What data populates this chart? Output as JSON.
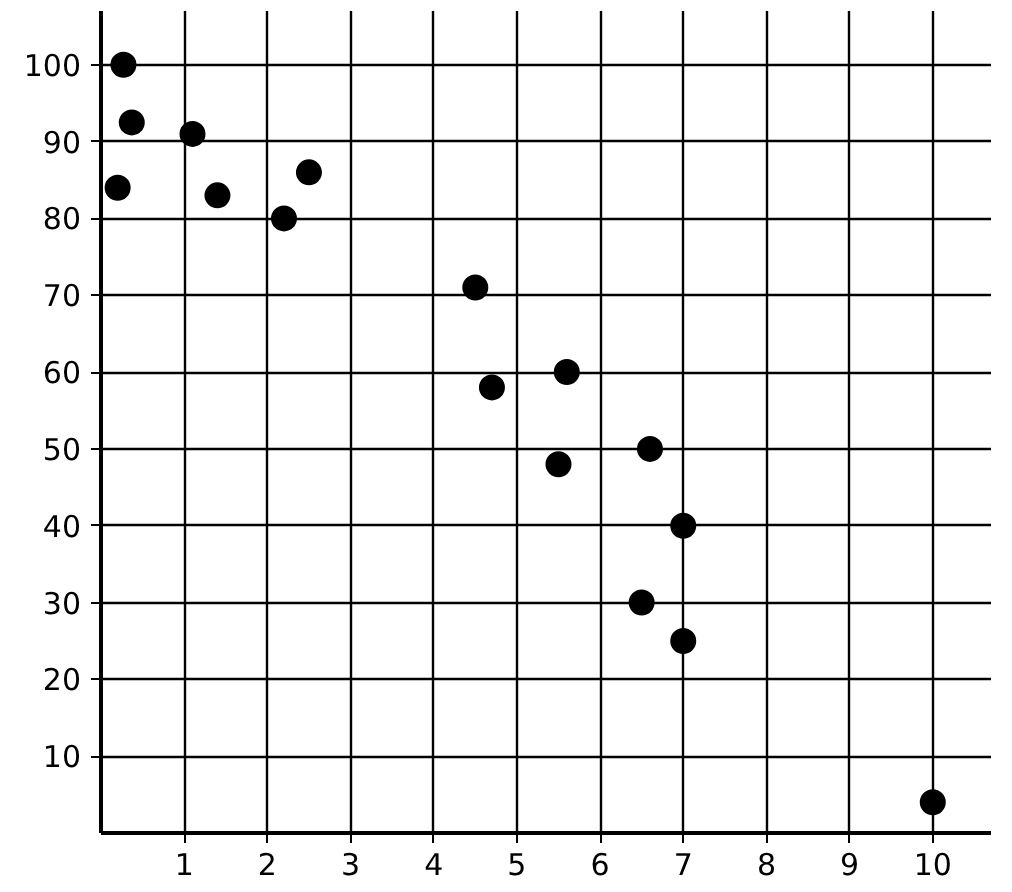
{
  "chart_data": {
    "type": "scatter",
    "x": [
      0.27,
      0.37,
      0.2,
      1.1,
      1.4,
      2.2,
      2.5,
      4.5,
      4.7,
      5.6,
      5.5,
      6.6,
      7.0,
      6.5,
      7.0,
      10.0
    ],
    "values": [
      100,
      92.5,
      84,
      91,
      83,
      80,
      86,
      71,
      58,
      60,
      48,
      50,
      40,
      30,
      25,
      4
    ],
    "color": "#000000",
    "marker": "circle",
    "grid": true,
    "xlim": [
      0,
      10.7
    ],
    "ylim": [
      0,
      107
    ],
    "xticks": [
      1,
      2,
      3,
      4,
      5,
      6,
      7,
      8,
      9,
      10
    ],
    "yticks": [
      10,
      20,
      30,
      40,
      50,
      60,
      70,
      80,
      90,
      100
    ]
  }
}
